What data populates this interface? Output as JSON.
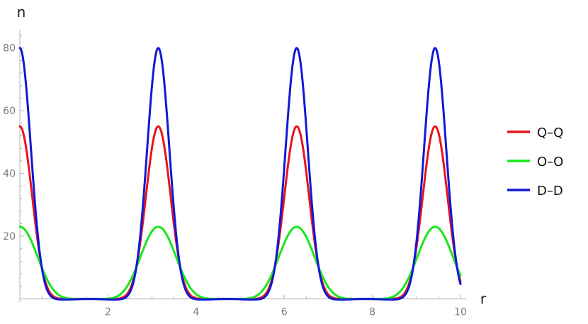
{
  "chart_data": {
    "type": "line",
    "xlabel": "r",
    "ylabel": "n",
    "xlim": [
      0,
      10
    ],
    "ylim": [
      -1,
      84
    ],
    "x_ticks": [
      2,
      4,
      6,
      8,
      10
    ],
    "y_ticks": [
      20,
      40,
      60,
      80
    ],
    "grid": false,
    "legend_position": "right",
    "series": [
      {
        "name": "Q–Q",
        "color": "#e8141c",
        "peak": 55,
        "floor": 0,
        "x": [
          0,
          0.25,
          0.5,
          0.75,
          1.0,
          1.5,
          2.0,
          2.5,
          2.75,
          3.0,
          3.1416,
          3.25,
          3.5,
          3.75,
          4.0,
          4.5,
          5.0,
          5.5,
          5.75,
          6.0,
          6.2832,
          6.5,
          6.75,
          7.0,
          7.5,
          8.0,
          8.5,
          8.75,
          9.0,
          9.4248,
          9.75,
          10.0
        ],
        "y": [
          55,
          35,
          12,
          2,
          0.3,
          0,
          0,
          1,
          10,
          44,
          55,
          47,
          19,
          3,
          0.5,
          0,
          0,
          0.4,
          3,
          28,
          55,
          32,
          5,
          0.5,
          0,
          0,
          0.5,
          5,
          27,
          55,
          30,
          5
        ]
      },
      {
        "name": "O–O",
        "color": "#19e619",
        "peak": 23,
        "floor": 0,
        "x": [
          0,
          0.25,
          0.5,
          0.75,
          1.0,
          1.5,
          2.0,
          2.5,
          2.75,
          3.0,
          3.1416,
          3.25,
          3.5,
          3.75,
          4.0,
          4.5,
          5.0,
          5.5,
          5.75,
          6.0,
          6.2832,
          6.5,
          6.75,
          7.0,
          7.5,
          8.0,
          8.5,
          8.75,
          9.0,
          9.4248,
          9.75,
          10.0
        ],
        "y": [
          23,
          18,
          9,
          4,
          2,
          0.5,
          0.5,
          3,
          8,
          19,
          23,
          21,
          13,
          5,
          2,
          0.5,
          0.5,
          2,
          5,
          15,
          23,
          17,
          7,
          2,
          0.5,
          0.5,
          2,
          7,
          15,
          23,
          14,
          6
        ]
      },
      {
        "name": "D–D",
        "color": "#1218d6",
        "peak": 80,
        "floor": -0.6,
        "x": [
          0,
          0.25,
          0.5,
          0.75,
          1.0,
          1.5,
          2.0,
          2.5,
          2.75,
          3.0,
          3.1416,
          3.25,
          3.5,
          3.75,
          4.0,
          4.5,
          5.0,
          5.5,
          5.75,
          6.0,
          6.2832,
          6.5,
          6.75,
          7.0,
          7.5,
          8.0,
          8.5,
          8.75,
          9.0,
          9.4248,
          9.75,
          10.0
        ],
        "y": [
          80,
          50,
          14,
          1.5,
          -0.4,
          -0.6,
          -0.6,
          0.5,
          9,
          60,
          80,
          68,
          22,
          2,
          -0.4,
          -0.6,
          -0.6,
          -0.3,
          2,
          35,
          80,
          45,
          5,
          -0.3,
          -0.6,
          -0.6,
          -0.3,
          5,
          34,
          80,
          42,
          4
        ]
      }
    ]
  }
}
